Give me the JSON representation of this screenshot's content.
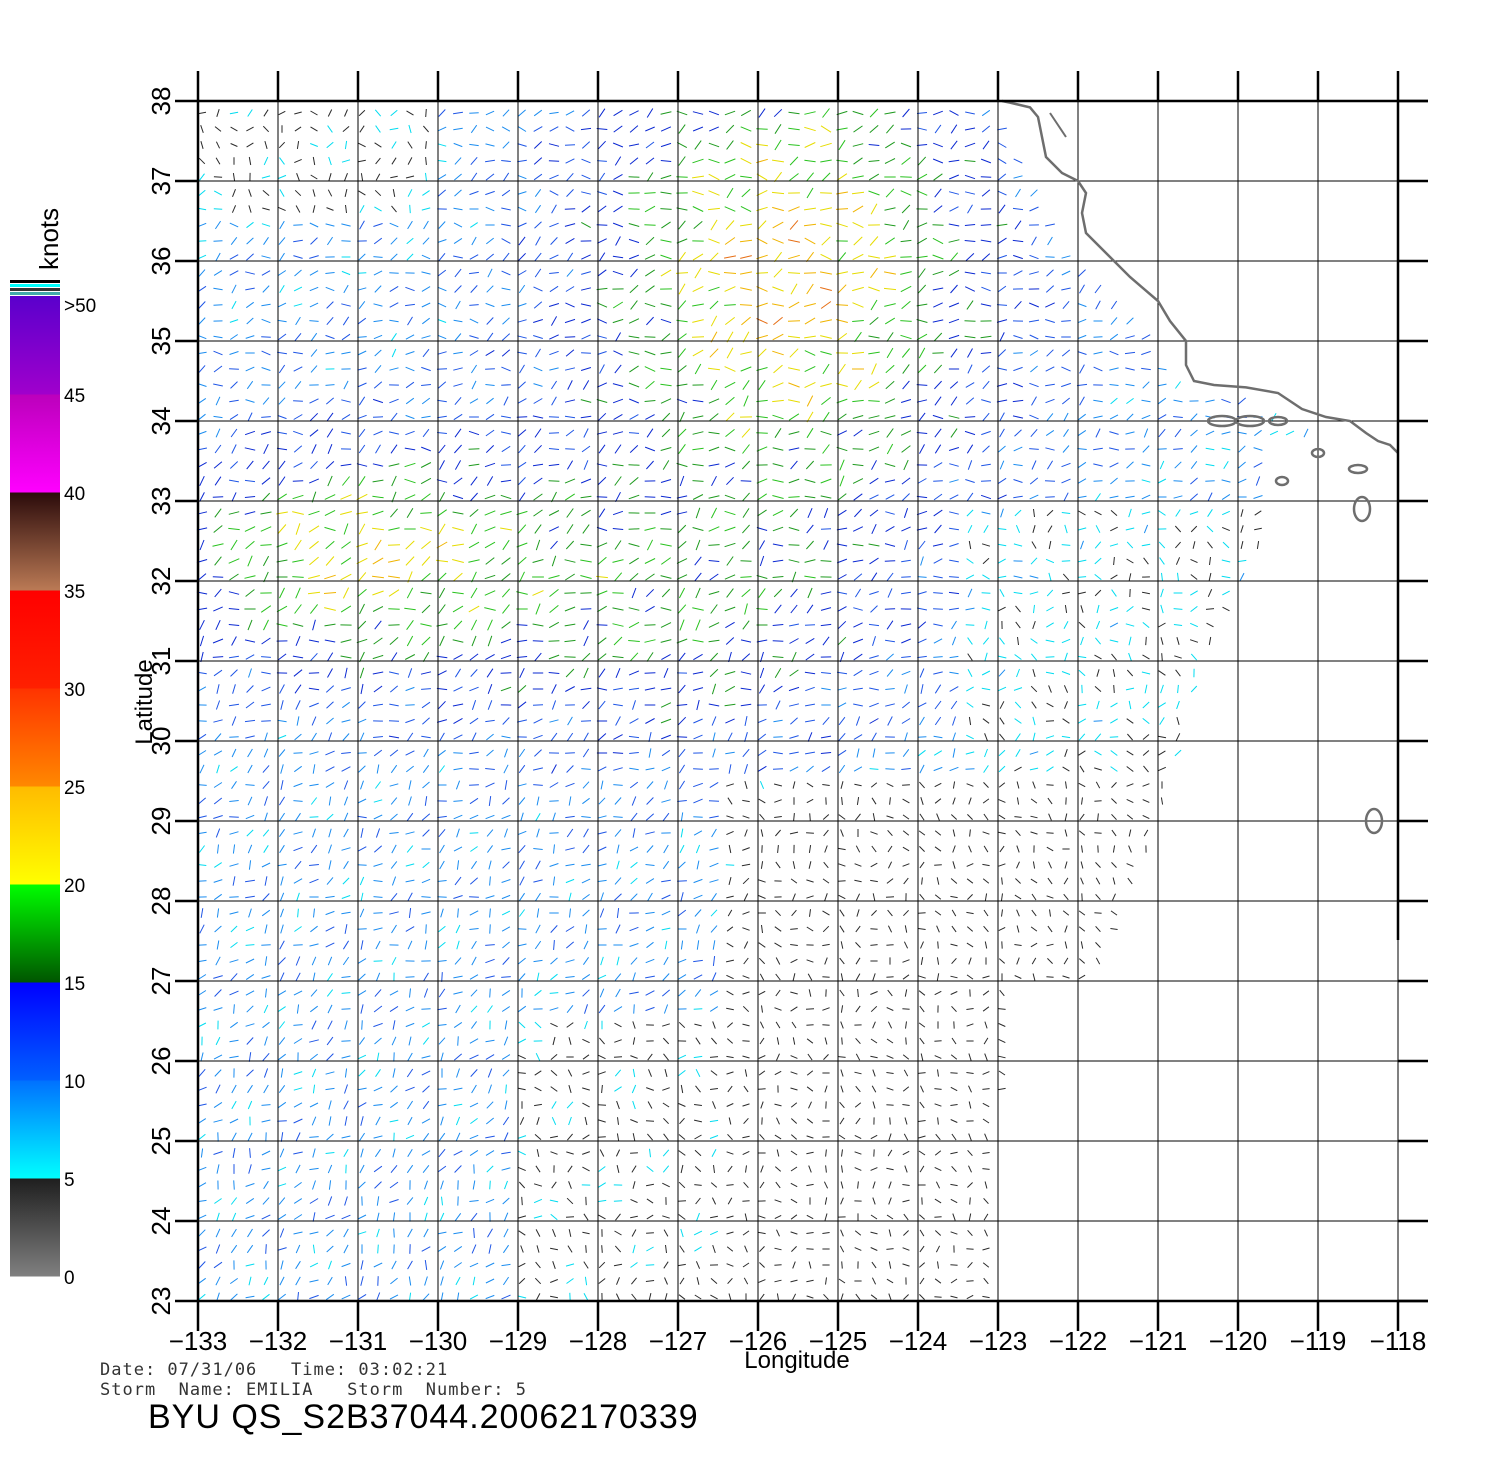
{
  "map": {
    "lon_min": -133,
    "lon_max": -118,
    "lat_min": 23,
    "lat_max": 38,
    "lon_ticks": [
      "-133",
      "-132",
      "-131",
      "-130",
      "-129",
      "-128",
      "-127",
      "-126",
      "-125",
      "-124",
      "-123",
      "-122",
      "-121",
      "-120",
      "-119",
      "-118"
    ],
    "lat_ticks": [
      "23",
      "24",
      "25",
      "26",
      "27",
      "28",
      "29",
      "30",
      "31",
      "32",
      "33",
      "34",
      "35",
      "36",
      "37",
      "38"
    ],
    "xlabel": "Longitude",
    "ylabel": "Latitude",
    "grid": true,
    "coastline_color": "#6e6e6e"
  },
  "colorbar": {
    "unit_label": "knots",
    "tick_labels": [
      "0",
      "5",
      "10",
      "15",
      "20",
      "25",
      "30",
      "35",
      "40",
      "45",
      ">50"
    ],
    "colors": {
      "0-5": [
        "#808080",
        "#202020"
      ],
      "5-10": [
        "#00ffff",
        "#0088ff"
      ],
      "10-15": [
        "#0066ff",
        "#0000ff"
      ],
      "15-20": [
        "#006600",
        "#00ff00"
      ],
      "20-25": [
        "#ffff00",
        "#ffcc00"
      ],
      "25-30": [
        "#ff9900",
        "#ff3300"
      ],
      "30-35": [
        "#ff2200",
        "#ff0000"
      ],
      "35-40": [
        "#bb7755",
        "#331111"
      ],
      "40-45": [
        "#ff00ff",
        "#cc00cc"
      ],
      "45-50": [
        "#aa00cc",
        "#6600cc"
      ]
    }
  },
  "info": {
    "line1": "Date: 07/31/06   Time: 03:02:21",
    "line2": "Storm  Name: EMILIA   Storm  Number: 5",
    "title": "BYU  QS_S2B37044.20062170339"
  }
}
